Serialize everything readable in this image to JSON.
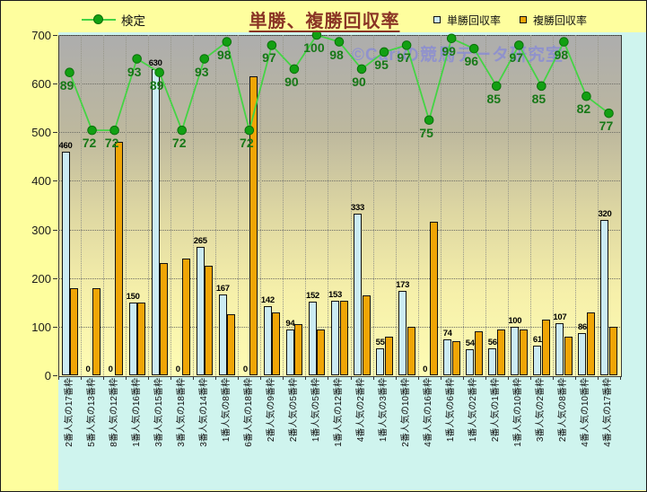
{
  "page": {
    "title": "単勝、複勝回収率",
    "watermark": "©Cariの競馬データ研究室"
  },
  "legend": {
    "line_label": "検定",
    "tansho_label": "単勝回収率",
    "fukusho_label": "複勝回収率"
  },
  "colors": {
    "page_bg": "#FEFE9E",
    "axis_zone_bg": "#CFF4EE",
    "plot_top": "#ADADAD",
    "plot_bottom": "#FEFCB4",
    "tansho_bar": "#CBEBF3",
    "fukusho_bar": "#F0A506",
    "kentei_line": "#44D444",
    "kentei_dot": "#12A012",
    "kentei_label": "#177817",
    "title_color": "#8A3425",
    "watermark_color": "#8487DA"
  },
  "chart_data": {
    "type": "bar",
    "title": "単勝、複勝回収率",
    "xlabel": "",
    "ylabel": "",
    "ylim": [
      0,
      700
    ],
    "ytick_step": 100,
    "secondary_ylim": [
      0,
      100
    ],
    "grid": true,
    "legend_position": "top",
    "categories": [
      "2番人気の17番枠",
      "5番人気の13番枠",
      "8番人気の12番枠",
      "1番人気の16番枠",
      "3番人気の15番枠",
      "3番人気の18番枠",
      "3番人気の14番枠",
      "1番人気の8番枠",
      "6番人気の18番枠",
      "2番人気の9番枠",
      "2番人気の5番枠",
      "1番人気の5番枠",
      "1番人気の12番枠",
      "4番人気の2番枠",
      "1番人気の3番枠",
      "2番人気の10番枠",
      "4番人気の16番枠",
      "1番人気の6番枠",
      "1番人気の2番枠",
      "2番人気の1番枠",
      "1番人気の10番枠",
      "3番人気の2番枠",
      "2番人気の8番枠",
      "4番人気の10番枠",
      "4番人気の17番枠"
    ],
    "series": [
      {
        "name": "単勝回収率",
        "type": "bar",
        "color": "#CBEBF3",
        "labels_shown": true,
        "values": [
          460,
          0,
          0,
          150,
          630,
          0,
          265,
          167,
          0,
          142,
          94,
          152,
          153,
          333,
          55,
          173,
          0,
          74,
          54,
          56,
          100,
          61,
          107,
          86,
          320
        ]
      },
      {
        "name": "複勝回収率",
        "type": "bar",
        "color": "#F0A506",
        "labels_shown": false,
        "values": [
          180,
          180,
          480,
          150,
          230,
          240,
          225,
          125,
          615,
          130,
          105,
          95,
          153,
          165,
          80,
          100,
          315,
          70,
          90,
          95,
          95,
          115,
          80,
          130,
          100
        ]
      },
      {
        "name": "検定",
        "type": "line",
        "axis": "secondary",
        "color": "#44D444",
        "labels_shown": true,
        "values": [
          89,
          72,
          72,
          93,
          89,
          72,
          93,
          98,
          72,
          97,
          90,
          100,
          98,
          90,
          95,
          97,
          75,
          99,
          96,
          85,
          97,
          85,
          98,
          82,
          77
        ]
      }
    ]
  }
}
